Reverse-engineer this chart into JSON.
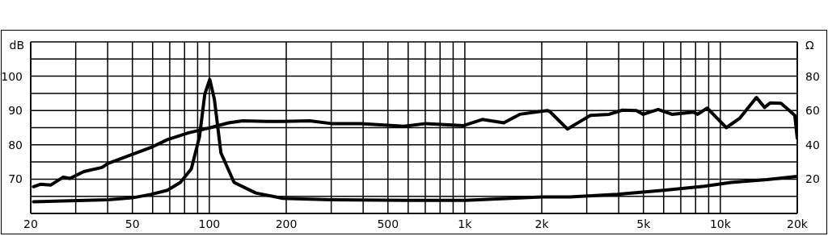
{
  "chart_data": {
    "type": "line",
    "ylabel": "dB",
    "y2label": "Ω",
    "log": "x",
    "grid": true,
    "marker": "none",
    "line_style": "solid",
    "xlim": [
      20,
      20000
    ],
    "xticks": [
      20,
      {
        "value": 30,
        "label": null
      },
      {
        "value": 40,
        "label": null
      },
      50,
      {
        "value": 60,
        "label": null
      },
      {
        "value": 70,
        "label": null
      },
      {
        "value": 80,
        "label": null
      },
      {
        "value": 90,
        "label": null
      },
      100,
      200,
      {
        "value": 300,
        "label": null
      },
      {
        "value": 400,
        "label": null
      },
      500,
      {
        "value": 600,
        "label": null
      },
      {
        "value": 700,
        "label": null
      },
      {
        "value": 800,
        "label": null
      },
      {
        "value": 900,
        "label": null
      },
      {
        "value": 1000,
        "label": "1k"
      },
      {
        "value": 2000,
        "label": "2k"
      },
      {
        "value": 3000,
        "label": null
      },
      {
        "value": 4000,
        "label": null
      },
      {
        "value": 5000,
        "label": "5k"
      },
      {
        "value": 6000,
        "label": null
      },
      {
        "value": 7000,
        "label": null
      },
      {
        "value": 8000,
        "label": null
      },
      {
        "value": 9000,
        "label": null
      },
      {
        "value": 10000,
        "label": "10k"
      },
      {
        "value": 20000,
        "label": "20k"
      }
    ],
    "ylim": [
      60,
      110
    ],
    "yticks": [
      {
        "value": 60,
        "label": null
      },
      {
        "value": 65,
        "label": null
      },
      70,
      {
        "value": 75,
        "label": null
      },
      80,
      {
        "value": 85,
        "label": null
      },
      90,
      {
        "value": 95,
        "label": null
      },
      100,
      {
        "value": 105,
        "label": null
      },
      {
        "value": 110,
        "label": null
      }
    ],
    "y2lim": [
      0,
      100
    ],
    "y2ticks": [
      20,
      40,
      60,
      80
    ],
    "series": [
      {
        "color": "#000000",
        "x": [
          20.5,
          21.8,
          24,
          26.8,
          28.5,
          32.3,
          38,
          40,
          50,
          59,
          68.5,
          83,
          101,
          119,
          135,
          168,
          194,
          247,
          300,
          392,
          577,
          703,
          990,
          1170,
          1420,
          1640,
          2100,
          2150,
          2520,
          2740,
          3100,
          3670,
          4140,
          4690,
          4990,
          5710,
          6460,
          7850,
          8150,
          8880,
          10550,
          11930,
          13840,
          14900,
          15660,
          17280,
          19560,
          20000
        ],
        "values": [
          67.8,
          68.5,
          68.3,
          70.6,
          70.2,
          72.2,
          73.4,
          74.5,
          77.2,
          79.2,
          81.5,
          83.5,
          85,
          86.4,
          87,
          86.8,
          86.8,
          87,
          86.2,
          86.2,
          85.4,
          86.2,
          85.6,
          87.4,
          86.4,
          88.9,
          90,
          89.7,
          84.6,
          86.2,
          88.6,
          88.9,
          90.1,
          90,
          88.9,
          90.3,
          88.9,
          89.5,
          88.9,
          90.7,
          85,
          87.8,
          93.8,
          90.9,
          92.2,
          92.1,
          88.6,
          81.9
        ]
      },
      {
        "color": "#000000",
        "axis": "y2",
        "x": [
          20.5,
          40,
          50,
          59,
          68.5,
          77,
          85,
          91.5,
          96,
          100.4,
          104.7,
          111,
          125,
          152,
          194,
          300,
          600,
          1000,
          2000,
          2580,
          3950,
          6000,
          8650,
          11000,
          15200,
          20000
        ],
        "values": [
          6.8,
          8,
          9.1,
          11.1,
          13.5,
          18.1,
          25.9,
          44.6,
          69.5,
          78.1,
          66.4,
          35.3,
          18.1,
          11.9,
          8.8,
          8,
          7.6,
          7.6,
          9.6,
          9.6,
          11.1,
          13.5,
          15.8,
          18.1,
          19.7,
          21.6
        ]
      }
    ]
  }
}
